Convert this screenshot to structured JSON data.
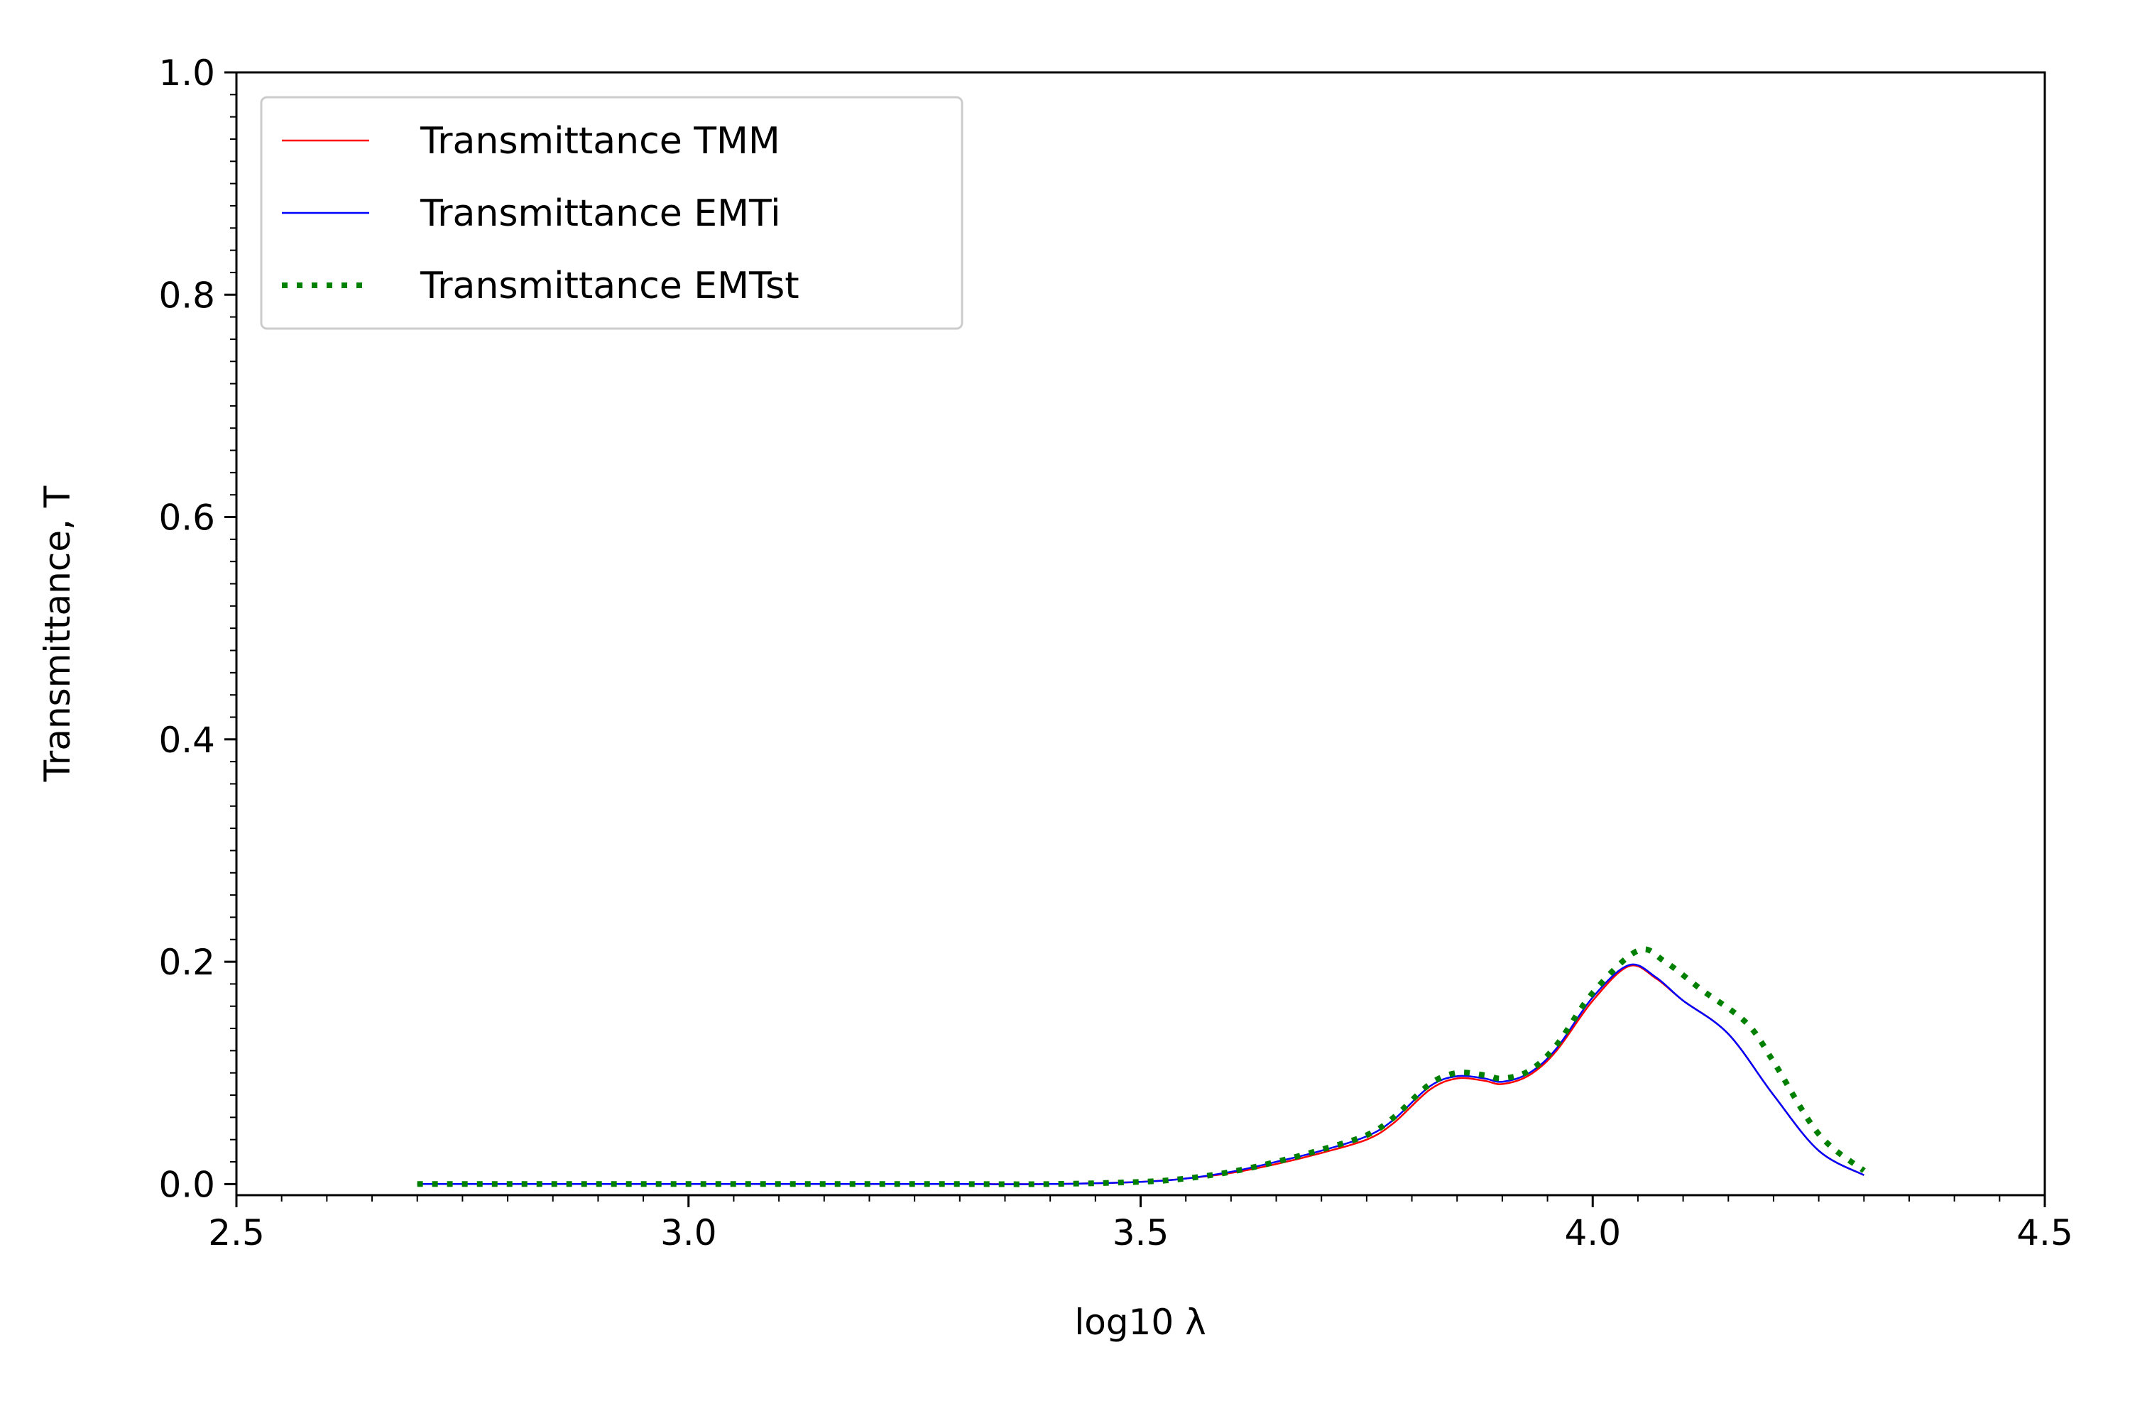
{
  "chart_data": {
    "type": "line",
    "title": "",
    "xlabel": "log10 λ",
    "ylabel": "Transmittance, T",
    "xlim": [
      2.5,
      4.5
    ],
    "ylim": [
      -0.01,
      1.0
    ],
    "xticks": [
      2.5,
      3.0,
      3.5,
      4.0,
      4.5
    ],
    "xtick_labels": [
      "2.5",
      "3.0",
      "3.5",
      "4.0",
      "4.5"
    ],
    "yticks": [
      0.0,
      0.2,
      0.4,
      0.6,
      0.8,
      1.0
    ],
    "ytick_labels": [
      "0.0",
      "0.2",
      "0.4",
      "0.6",
      "0.8",
      "1.0"
    ],
    "x_minor_step": 0.05,
    "y_minor_step": 0.02,
    "grid": false,
    "legend_position": "top-left",
    "series": [
      {
        "name": "Transmittance TMM",
        "color": "#ff0000",
        "style": "solid",
        "x": [
          2.7,
          2.8,
          2.9,
          3.0,
          3.1,
          3.2,
          3.3,
          3.4,
          3.5,
          3.55,
          3.6,
          3.65,
          3.7,
          3.75,
          3.78,
          3.82,
          3.85,
          3.88,
          3.9,
          3.93,
          3.96,
          4.0,
          4.04,
          4.07,
          4.1,
          4.15,
          4.2,
          4.25,
          4.3
        ],
        "y": [
          0.0,
          0.0,
          0.0,
          0.0,
          0.0,
          0.0,
          0.0,
          0.0,
          0.002,
          0.005,
          0.01,
          0.018,
          0.028,
          0.04,
          0.055,
          0.085,
          0.095,
          0.093,
          0.09,
          0.098,
          0.12,
          0.165,
          0.196,
          0.185,
          0.165,
          0.135,
          0.08,
          0.03,
          0.008
        ]
      },
      {
        "name": "Transmittance EMTi",
        "color": "#0000ff",
        "style": "solid",
        "x": [
          2.7,
          2.8,
          2.9,
          3.0,
          3.1,
          3.2,
          3.3,
          3.4,
          3.5,
          3.55,
          3.6,
          3.65,
          3.7,
          3.75,
          3.78,
          3.82,
          3.85,
          3.88,
          3.9,
          3.93,
          3.96,
          4.0,
          4.04,
          4.07,
          4.1,
          4.15,
          4.2,
          4.25,
          4.3
        ],
        "y": [
          0.0,
          0.0,
          0.0,
          0.0,
          0.0,
          0.0,
          0.0,
          0.0,
          0.002,
          0.005,
          0.011,
          0.02,
          0.03,
          0.043,
          0.058,
          0.088,
          0.097,
          0.095,
          0.092,
          0.1,
          0.122,
          0.168,
          0.197,
          0.186,
          0.165,
          0.135,
          0.08,
          0.03,
          0.008
        ]
      },
      {
        "name": "Transmittance EMTst",
        "color": "#008000",
        "style": "dotted",
        "x": [
          2.7,
          2.8,
          2.9,
          3.0,
          3.1,
          3.2,
          3.3,
          3.4,
          3.5,
          3.55,
          3.6,
          3.65,
          3.7,
          3.75,
          3.78,
          3.82,
          3.85,
          3.88,
          3.9,
          3.93,
          3.96,
          4.0,
          4.05,
          4.08,
          4.12,
          4.17,
          4.2,
          4.25,
          4.3
        ],
        "y": [
          0.0,
          0.0,
          0.0,
          0.0,
          0.0,
          0.0,
          0.0,
          0.0,
          0.002,
          0.005,
          0.011,
          0.02,
          0.031,
          0.044,
          0.06,
          0.09,
          0.1,
          0.098,
          0.095,
          0.102,
          0.125,
          0.172,
          0.21,
          0.2,
          0.175,
          0.145,
          0.11,
          0.045,
          0.012
        ]
      }
    ]
  }
}
